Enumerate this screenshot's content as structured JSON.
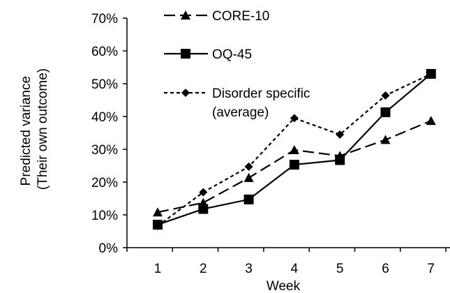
{
  "chart_data": {
    "type": "line",
    "title": "",
    "xlabel": "Week",
    "ylabel": [
      "Predicted variance",
      "(Their own outcome)"
    ],
    "x": [
      1,
      2,
      3,
      4,
      5,
      6,
      7
    ],
    "x_tick_labels": [
      "1",
      "2",
      "3",
      "4",
      "5",
      "6",
      "7"
    ],
    "ylim": [
      0,
      70
    ],
    "y_tick_labels": [
      "0%",
      "10%",
      "20%",
      "30%",
      "40%",
      "50%",
      "60%",
      "70%"
    ],
    "y_unit": "%",
    "grid": false,
    "legend_position": "top-left",
    "series": [
      {
        "name": "CORE-10",
        "marker": "triangle",
        "line_style": "long-dash",
        "color": "#000000",
        "values": [
          10.8,
          13.7,
          21.3,
          29.8,
          28.0,
          32.9,
          38.7
        ]
      },
      {
        "name": "OQ-45",
        "marker": "square",
        "line_style": "solid",
        "color": "#000000",
        "values": [
          7.0,
          11.8,
          14.7,
          25.3,
          26.7,
          41.3,
          53.0
        ]
      },
      {
        "name": [
          "Disorder specific",
          "(average)"
        ],
        "marker": "diamond",
        "line_style": "short-dash",
        "color": "#000000",
        "values": [
          6.6,
          16.9,
          24.7,
          39.5,
          34.5,
          46.4,
          53.0
        ]
      }
    ]
  }
}
